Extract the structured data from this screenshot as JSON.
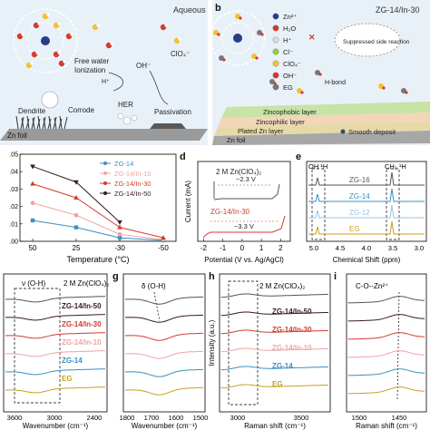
{
  "panel_a": {
    "header": "Aqueous",
    "labels": {
      "free_water": "Free water",
      "ionization": "Ionization",
      "oh": "OH⁻",
      "clo4": "ClO₄⁻",
      "h": "H⁺",
      "dendrite": "Dendrite",
      "corrode": "Corrode",
      "her": "HER",
      "passivation": "Passivation",
      "zn_foil": "Zn foil"
    }
  },
  "panel_b": {
    "letter": "b",
    "header": "ZG-14/In-30",
    "legend": [
      {
        "label": "Zn²⁺",
        "color": "#2a3a8c"
      },
      {
        "label": "H₂O",
        "color": "#d63a2a"
      },
      {
        "label": "H⁺",
        "color": "#dddddd"
      },
      {
        "label": "Cl⁻",
        "color": "#9acd32"
      },
      {
        "label": "ClO₄⁻",
        "color": "#f2c230"
      },
      {
        "label": "OH⁻",
        "color": "#e0332a"
      },
      {
        "label": "EG",
        "color": "#777777"
      }
    ],
    "labels": {
      "suppressed": "Suppressed side reaction",
      "hbond": "H-bond",
      "zincophobic": "Zincophobic layer",
      "zincophilic": "Zincophilic layer",
      "plated": "Plated Zn layer",
      "smooth": "Smooth deposit",
      "zn_foil": "Zn foil"
    }
  },
  "panel_c": {
    "chart_data": {
      "type": "line",
      "x": [
        "50",
        "25",
        "-30",
        "-50"
      ],
      "xlabel": "Temperature (°C)",
      "y_ticks": [
        "0.00",
        "0.01",
        "0.02",
        "0.03",
        "0.04",
        "0.05"
      ],
      "ylim": [
        0,
        0.05
      ],
      "series": [
        {
          "name": "ZG-14",
          "color": "#3a8fc4",
          "marker": "square",
          "values": [
            0.012,
            0.008,
            0.002,
            0.0005
          ]
        },
        {
          "name": "ZG-14/In-10",
          "color": "#f0a3a3",
          "marker": "circle",
          "values": [
            0.022,
            0.015,
            0.004,
            0.001
          ]
        },
        {
          "name": "ZG-14/In-30",
          "color": "#d33b30",
          "marker": "triangle",
          "values": [
            0.033,
            0.025,
            0.008,
            0.002
          ]
        },
        {
          "name": "ZG-14/In-50",
          "color": "#3a1a1a",
          "marker": "triangle-down",
          "values": [
            0.043,
            0.034,
            0.011,
            null
          ]
        }
      ]
    }
  },
  "panel_d": {
    "letter": "d",
    "chart_data": {
      "type": "line",
      "xlabel": "Potential (V vs. Ag/AgCl)",
      "ylabel": "Current (mA)",
      "x_ticks": [
        "-2",
        "-1",
        "0",
        "1",
        "2"
      ],
      "xlim": [
        -2.3,
        2.5
      ],
      "series": [
        {
          "name": "2 M Zn(ClO₄)₂",
          "color": "#555555",
          "window": "~2.3 V"
        },
        {
          "name": "ZG-14/In-30",
          "color": "#d33b30",
          "window": "~3.3 V"
        }
      ]
    }
  },
  "panel_e": {
    "letter": "e",
    "chart_data": {
      "type": "line",
      "xlabel": "Chemical Shift (ppm)",
      "x_ticks": [
        "5.0",
        "4.5",
        "4.0",
        "3.5",
        "3.0"
      ],
      "peak_labels": [
        "OH ¹H",
        "CH₂ ¹H"
      ],
      "series": [
        {
          "name": "ZG-16",
          "color": "#555555"
        },
        {
          "name": "ZG-14",
          "color": "#3a8fc4"
        },
        {
          "name": "ZG-12",
          "color": "#9bc3e0"
        },
        {
          "name": "EG",
          "color": "#c8a020"
        }
      ]
    }
  },
  "panel_f": {
    "chart_data": {
      "type": "line",
      "xlabel": "Wavenumber (cm⁻¹)",
      "x_ticks": [
        "3600",
        "3000",
        "2400"
      ],
      "annotation": "ν (O-H)",
      "series_title": "2 M Zn(ClO₄)₂",
      "series": [
        {
          "name": "ZG-14/In-50",
          "color": "#3a1a1a"
        },
        {
          "name": "ZG-14/In-30",
          "color": "#d33b30"
        },
        {
          "name": "ZG-14/In-10",
          "color": "#f0a3a3"
        },
        {
          "name": "ZG-14",
          "color": "#3a8fc4"
        },
        {
          "name": "EG",
          "color": "#c8a020"
        }
      ]
    }
  },
  "panel_g": {
    "letter": "g",
    "chart_data": {
      "type": "line",
      "xlabel": "Wavenumber (cm⁻¹)",
      "x_ticks": [
        "1800",
        "1700",
        "1600",
        "1500"
      ],
      "annotation": "δ (O-H)"
    }
  },
  "panel_h": {
    "letter": "h",
    "chart_data": {
      "type": "line",
      "xlabel": "Raman shift (cm⁻¹)",
      "ylabel": "Intensity (a.u.)",
      "x_ticks": [
        "3000",
        "3500"
      ],
      "series_title": "2 M Zn(ClO₄)₂",
      "series": [
        {
          "name": "ZG-14/In-50",
          "color": "#3a1a1a"
        },
        {
          "name": "ZG-14/In-30",
          "color": "#d33b30"
        },
        {
          "name": "ZG-14/In-10",
          "color": "#f0a3a3"
        },
        {
          "name": "ZG-14",
          "color": "#3a8fc4"
        },
        {
          "name": "EG",
          "color": "#c8a020"
        }
      ]
    }
  },
  "panel_i": {
    "letter": "i",
    "chart_data": {
      "type": "line",
      "xlabel": "Raman shift (cm⁻¹)",
      "x_ticks": [
        "1500",
        "1450"
      ],
      "annotation": "C-O--Zn²⁺"
    }
  }
}
